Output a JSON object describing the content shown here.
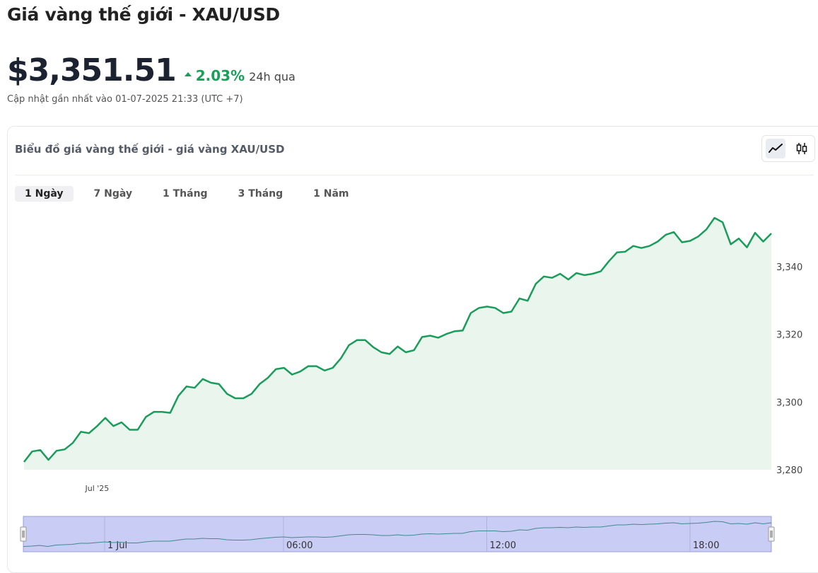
{
  "header": {
    "title": "Giá vàng thế giới - XAU/USD",
    "price": "$3,351.51",
    "change": "2.03%",
    "change_period": "24h qua",
    "updated": "Cập nhật gần nhất vào 01-07-2025 21:33 (UTC +7)"
  },
  "card": {
    "title": "Biểu đồ giá vàng thế giới - giá vàng XAU/USD",
    "toggles": [
      {
        "name": "line-chart-icon",
        "active": true
      },
      {
        "name": "candlestick-chart-icon",
        "active": false
      }
    ]
  },
  "tabs": [
    {
      "label": "1 Ngày",
      "active": true
    },
    {
      "label": "7 Ngày",
      "active": false
    },
    {
      "label": "1 Tháng",
      "active": false
    },
    {
      "label": "3 Tháng",
      "active": false
    },
    {
      "label": "1 Năm",
      "active": false
    }
  ],
  "colors": {
    "line": "#1a9c5a",
    "area": "#eaf5ee",
    "up": "#18a05a",
    "navigator_fill": "#c9cdf5"
  },
  "chart_data": {
    "type": "area",
    "title": "",
    "xlabel": "",
    "ylabel": "",
    "ylim": [
      3280,
      3359
    ],
    "yticks": [
      3280,
      3300,
      3320,
      3340
    ],
    "ytick_labels": [
      "3,280",
      "3,300",
      "3,320",
      "3,340"
    ],
    "xtick_labels": [
      {
        "label": "Jul '25",
        "idx": 9
      }
    ],
    "series": [
      {
        "values": [
          3282.3,
          3285.4,
          3285.8,
          3282.9,
          3285.6,
          3286.0,
          3287.9,
          3291.2,
          3290.8,
          3292.9,
          3295.3,
          3292.9,
          3294.0,
          3291.8,
          3291.8,
          3295.6,
          3297.1,
          3297.1,
          3296.8,
          3301.8,
          3304.6,
          3304.2,
          3306.8,
          3305.7,
          3305.3,
          3302.4,
          3301.1,
          3301.1,
          3302.4,
          3305.3,
          3307.1,
          3309.7,
          3310.1,
          3308.1,
          3309.0,
          3310.6,
          3310.6,
          3309.3,
          3310.1,
          3312.9,
          3316.8,
          3318.3,
          3318.3,
          3316.2,
          3314.7,
          3314.2,
          3316.4,
          3314.7,
          3315.3,
          3319.2,
          3319.6,
          3319.0,
          3320.1,
          3320.9,
          3321.1,
          3326.3,
          3327.8,
          3328.2,
          3327.8,
          3326.3,
          3326.7,
          3330.6,
          3329.9,
          3334.9,
          3337.1,
          3336.7,
          3337.9,
          3336.2,
          3338.1,
          3337.5,
          3337.9,
          3338.6,
          3341.6,
          3344.2,
          3344.4,
          3346.1,
          3345.5,
          3346.1,
          3347.4,
          3349.4,
          3350.2,
          3347.2,
          3347.6,
          3348.9,
          3351.0,
          3354.4,
          3353.1,
          3346.6,
          3348.3,
          3345.7,
          3350.0,
          3347.4,
          3349.8
        ]
      }
    ],
    "navigator": {
      "labels": [
        {
          "label": "1 Jul",
          "idx": 10
        },
        {
          "label": "06:00",
          "idx": 32
        },
        {
          "label": "12:00",
          "idx": 57
        },
        {
          "label": "18:00",
          "idx": 82
        }
      ],
      "values": [
        3281.5,
        3281.6,
        3281.8,
        3281.5,
        3281.9,
        3282.0,
        3282.1,
        3282.4,
        3282.4,
        3282.6,
        3282.8,
        3282.6,
        3282.7,
        3282.5,
        3282.5,
        3282.8,
        3283.0,
        3283.0,
        3283.0,
        3283.3,
        3283.6,
        3283.6,
        3283.8,
        3283.7,
        3283.7,
        3283.4,
        3283.3,
        3283.3,
        3283.4,
        3283.7,
        3283.9,
        3284.1,
        3284.2,
        3284.0,
        3284.1,
        3284.2,
        3284.2,
        3284.1,
        3284.2,
        3284.5,
        3284.8,
        3284.9,
        3284.9,
        3284.8,
        3284.6,
        3284.6,
        3284.8,
        3284.6,
        3284.7,
        3285.0,
        3285.1,
        3285.0,
        3285.1,
        3285.2,
        3285.2,
        3285.7,
        3285.9,
        3285.9,
        3285.9,
        3285.7,
        3285.8,
        3286.2,
        3286.1,
        3286.6,
        3286.8,
        3286.8,
        3286.9,
        3286.8,
        3287.0,
        3286.9,
        3287.0,
        3287.0,
        3287.3,
        3287.6,
        3287.6,
        3287.8,
        3287.7,
        3287.8,
        3287.9,
        3288.1,
        3288.2,
        3287.9,
        3288.0,
        3288.1,
        3288.3,
        3288.6,
        3288.5,
        3287.9,
        3288.0,
        3287.8,
        3288.2,
        3287.9,
        3288.2
      ]
    }
  }
}
